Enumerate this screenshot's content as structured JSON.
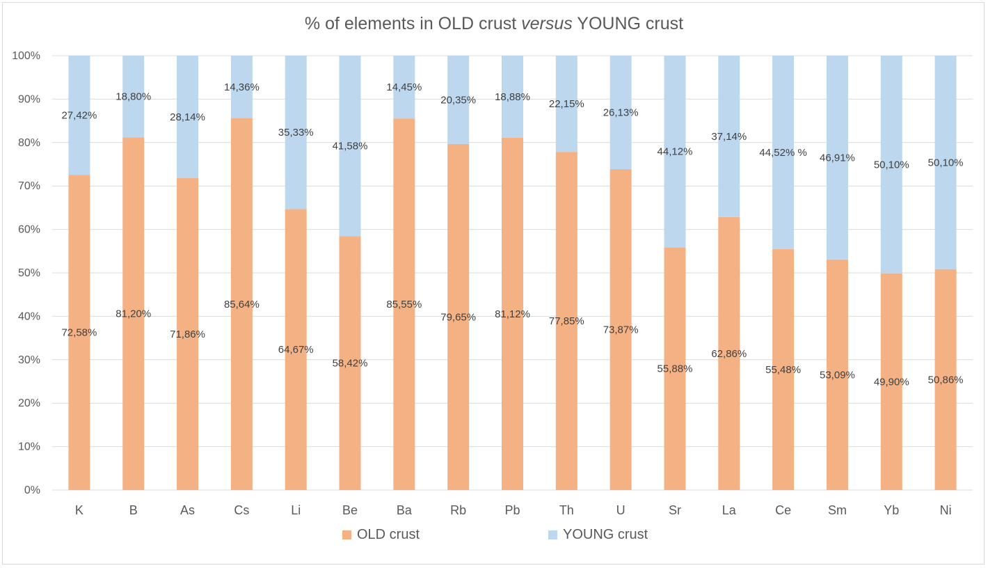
{
  "chart_data": {
    "type": "bar",
    "stacked": true,
    "title_prefix": "% of elements in OLD crust ",
    "title_emphasis": "versus",
    "title_suffix": " YOUNG crust",
    "categories": [
      "K",
      "B",
      "As",
      "Cs",
      "Li",
      "Be",
      "Ba",
      "Rb",
      "Pb",
      "Th",
      "U",
      "Sr",
      "La",
      "Ce",
      "Sm",
      "Yb",
      "Ni"
    ],
    "series": [
      {
        "name": "OLD crust",
        "color": "#f4b183",
        "values": [
          72.58,
          81.2,
          71.86,
          85.64,
          64.67,
          58.42,
          85.55,
          79.65,
          81.12,
          77.85,
          73.87,
          55.88,
          62.86,
          55.48,
          53.09,
          49.9,
          50.86
        ],
        "labels": [
          "72,58%",
          "81,20%",
          "71,86%",
          "85,64%",
          "64,67%",
          "58,42%",
          "85,55%",
          "79,65%",
          "81,12%",
          "77,85%",
          "73,87%",
          "55,88%",
          "62,86%",
          "55,48%",
          "53,09%",
          "49,90%",
          "50,86%"
        ]
      },
      {
        "name": "YOUNG crust",
        "color": "#bdd7ee",
        "values": [
          27.42,
          18.8,
          28.14,
          14.36,
          35.33,
          41.58,
          14.45,
          20.35,
          18.88,
          22.15,
          26.13,
          44.12,
          37.14,
          44.52,
          46.91,
          50.1,
          50.1
        ],
        "labels": [
          "27,42%",
          "18,80%",
          "28,14%",
          "14,36%",
          "35,33%",
          "41,58%",
          "14,45%",
          "20,35%",
          "18,88%",
          "22,15%",
          "26,13%",
          "44,12%",
          "37,14%",
          "44,52% %",
          "46,91%",
          "50,10%",
          "50,10%"
        ]
      }
    ],
    "y_ticks": [
      "0%",
      "10%",
      "20%",
      "30%",
      "40%",
      "50%",
      "60%",
      "70%",
      "80%",
      "90%",
      "100%"
    ],
    "ylim": [
      0,
      100
    ],
    "grid": true,
    "gridline_color": "#d9d9d9",
    "legend_position": "bottom"
  }
}
